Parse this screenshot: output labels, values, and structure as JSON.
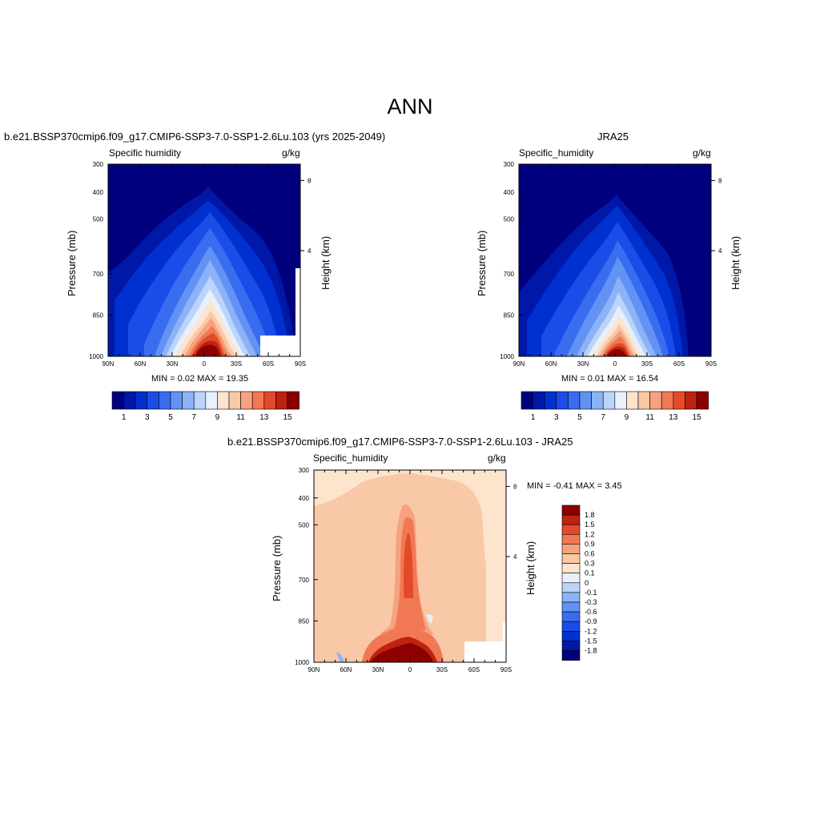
{
  "main_title": "ANN",
  "chart_data": [
    {
      "type": "heatmap",
      "title": "b.e21.BSSP370cmip6.f09_g17.CMIP6-SSP3-7.0-SSP1-2.6Lu.103 (yrs 2025-2049)",
      "left_label": "Specific humidity",
      "right_label": "g/kg",
      "ylabel": "Pressure (mb)",
      "y2label": "Height (km)",
      "x_ticks": [
        "90N",
        "60N",
        "30N",
        "0",
        "30S",
        "60S",
        "90S"
      ],
      "y_ticks": [
        "300",
        "400",
        "500",
        "700",
        "850",
        "1000"
      ],
      "y2_ticks": [
        "8",
        "4"
      ],
      "stats": "MIN =   0.02  MAX =  19.35",
      "min": 0.02,
      "max": 19.35,
      "levels": [
        1,
        2,
        3,
        4,
        5,
        6,
        7,
        8,
        9,
        10,
        11,
        12,
        13,
        14,
        15
      ],
      "colorbar_labels": [
        "1",
        "3",
        "5",
        "7",
        "9",
        "11",
        "13",
        "15"
      ],
      "colors": [
        "#00007f",
        "#0018a8",
        "#0030d0",
        "#1a4ce8",
        "#3a6cf0",
        "#6292f4",
        "#8cb2f8",
        "#bcd4fa",
        "#e8f0fc",
        "#fde4cc",
        "#f9c8a6",
        "#f6a27e",
        "#f27854",
        "#e24a2a",
        "#be2210",
        "#8c0000"
      ]
    },
    {
      "type": "heatmap",
      "title": "JRA25",
      "left_label": "Specific_humidity",
      "right_label": "g/kg",
      "ylabel": "Pressure (mb)",
      "y2label": "Height (km)",
      "x_ticks": [
        "90N",
        "60N",
        "30N",
        "0",
        "30S",
        "60S",
        "90S"
      ],
      "y_ticks": [
        "300",
        "400",
        "500",
        "700",
        "850",
        "1000"
      ],
      "y2_ticks": [
        "8",
        "4"
      ],
      "stats": "MIN =   0.01  MAX =  16.54",
      "min": 0.01,
      "max": 16.54,
      "levels": [
        1,
        2,
        3,
        4,
        5,
        6,
        7,
        8,
        9,
        10,
        11,
        12,
        13,
        14,
        15
      ],
      "colorbar_labels": [
        "1",
        "3",
        "5",
        "7",
        "9",
        "11",
        "13",
        "15"
      ],
      "colors": [
        "#00007f",
        "#0018a8",
        "#0030d0",
        "#1a4ce8",
        "#3a6cf0",
        "#6292f4",
        "#8cb2f8",
        "#bcd4fa",
        "#e8f0fc",
        "#fde4cc",
        "#f9c8a6",
        "#f6a27e",
        "#f27854",
        "#e24a2a",
        "#be2210",
        "#8c0000"
      ]
    },
    {
      "type": "heatmap",
      "title": "b.e21.BSSP370cmip6.f09_g17.CMIP6-SSP3-7.0-SSP1-2.6Lu.103 - JRA25",
      "left_label": "Specific_humidity",
      "right_label": "g/kg",
      "ylabel": "Pressure (mb)",
      "y2label": "Height (km)",
      "x_ticks": [
        "90N",
        "60N",
        "30N",
        "0",
        "30S",
        "60S",
        "90S"
      ],
      "y_ticks": [
        "300",
        "400",
        "500",
        "700",
        "850",
        "1000"
      ],
      "y2_ticks": [
        "8",
        "4"
      ],
      "stats": "MIN =  -0.41  MAX =   3.45",
      "min": -0.41,
      "max": 3.45,
      "levels": [
        -1.8,
        -1.5,
        -1.2,
        -0.9,
        -0.6,
        -0.3,
        -0.1,
        0,
        0.1,
        0.3,
        0.6,
        0.9,
        1.2,
        1.5,
        1.8
      ],
      "colorbar_labels": [
        "1.8",
        "1.5",
        "1.2",
        "0.9",
        "0.6",
        "0.3",
        "0.1",
        "0",
        "-0.1",
        "-0.3",
        "-0.6",
        "-0.9",
        "-1.2",
        "-1.5",
        "-1.8"
      ],
      "colors": [
        "#8c0000",
        "#be2210",
        "#e24a2a",
        "#f27854",
        "#f6a27e",
        "#f9c8a6",
        "#fde4cc",
        "#e8f0fc",
        "#bcd4fa",
        "#8cb2f8",
        "#6292f4",
        "#3a6cf0",
        "#1a4ce8",
        "#0030d0",
        "#0018a8",
        "#00007f"
      ]
    }
  ]
}
